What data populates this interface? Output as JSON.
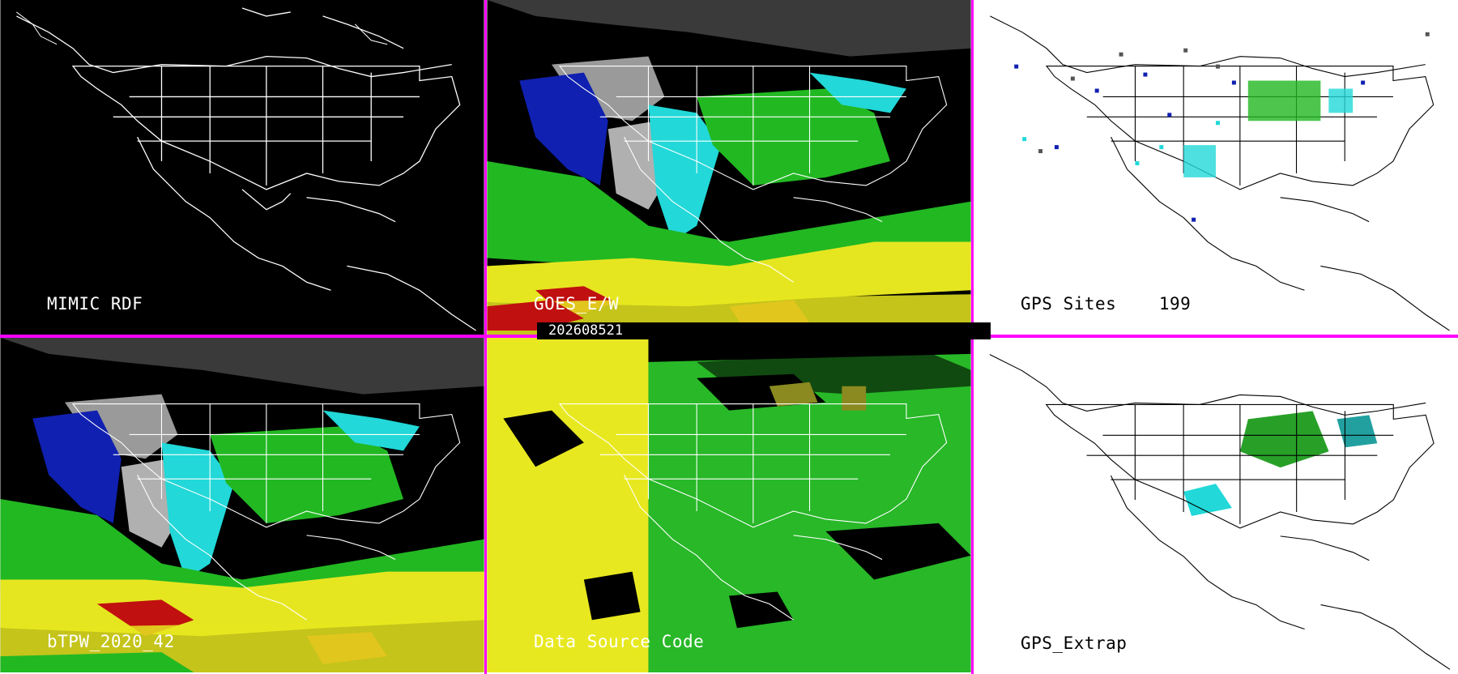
{
  "panels": [
    {
      "id": "p1",
      "label": "MIMIC RDF",
      "theme": "dark",
      "data_icon": "blank-map"
    },
    {
      "id": "p2",
      "label": "GOES_E/W",
      "theme": "dark",
      "data_icon": "tpw-field"
    },
    {
      "id": "p3",
      "label": "GPS Sites    199",
      "theme": "light",
      "data_icon": "gps-stations"
    },
    {
      "id": "p4",
      "label": "bTPW_2020_42",
      "theme": "dark",
      "data_icon": "tpw-field"
    },
    {
      "id": "p5",
      "label": "Data Source Code",
      "theme": "dark",
      "data_icon": "source-code-field"
    },
    {
      "id": "p6",
      "label": "GPS_Extrap",
      "theme": "light",
      "data_icon": "gps-extrapolation"
    }
  ],
  "timestamp": "202608521",
  "colors": {
    "divider": "#ff00ff",
    "map_outline_dark": "#ffffff",
    "map_outline_light": "#000000",
    "tpw_gray": "#9a9a9a",
    "tpw_blue": "#1020b0",
    "tpw_cyan": "#22d8d8",
    "tpw_green": "#22b822",
    "tpw_yellow": "#e6e620",
    "tpw_red": "#c01010",
    "source_yellow": "#e8e820",
    "source_green": "#28b828"
  }
}
